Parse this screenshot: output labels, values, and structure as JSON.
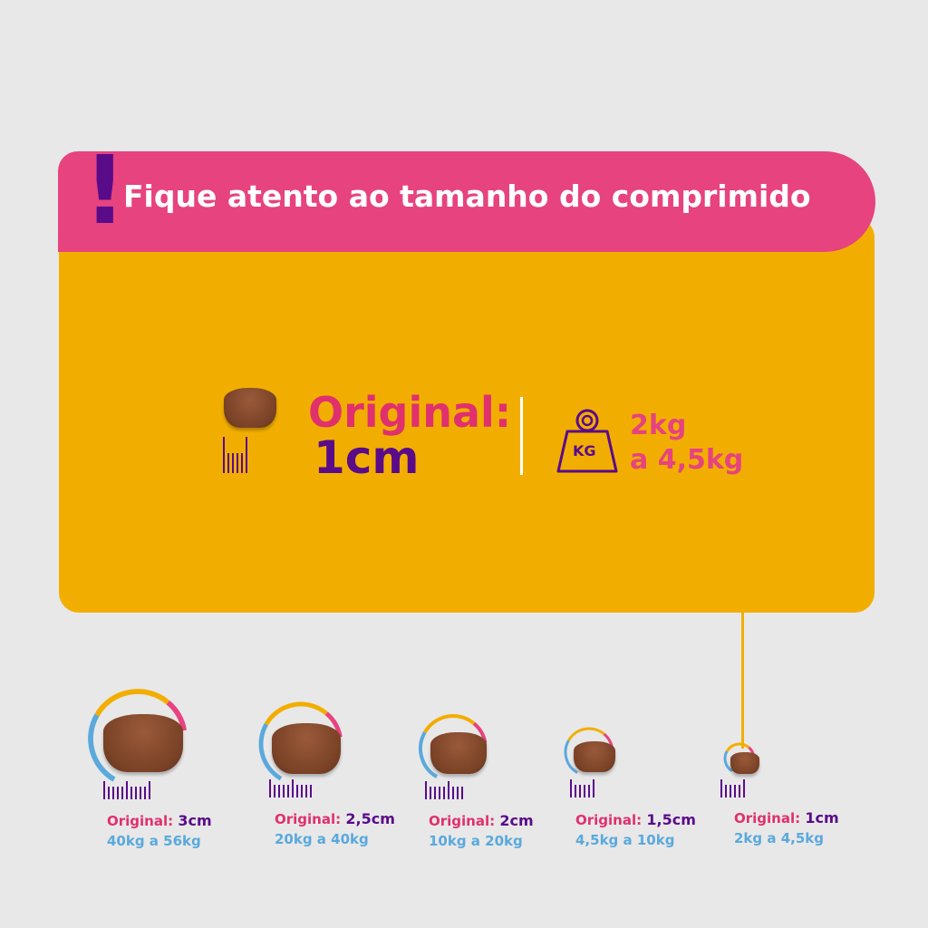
{
  "header": {
    "title": "Fique atento ao tamanho do comprimido",
    "alert_icon": "exclamation-icon"
  },
  "featured": {
    "label": "Original:",
    "size": "1cm",
    "weight_line1": "2kg",
    "weight_line2": "a 4,5kg",
    "weight_icon_text": "KG"
  },
  "colors": {
    "pink": "#e6437f",
    "yellow": "#f2ae00",
    "purple": "#5a0b8a",
    "blue": "#5aa9dc",
    "background": "#e8e8e8"
  },
  "sizes": [
    {
      "label": "Original:",
      "size": "3cm",
      "weight": "40kg a 56kg"
    },
    {
      "label": "Original:",
      "size": "2,5cm",
      "weight": "20kg a 40kg"
    },
    {
      "label": "Original:",
      "size": "2cm",
      "weight": "10kg a 20kg"
    },
    {
      "label": "Original:",
      "size": "1,5cm",
      "weight": "4,5kg a 10kg"
    },
    {
      "label": "Original:",
      "size": "1cm",
      "weight": "2kg a 4,5kg"
    }
  ]
}
